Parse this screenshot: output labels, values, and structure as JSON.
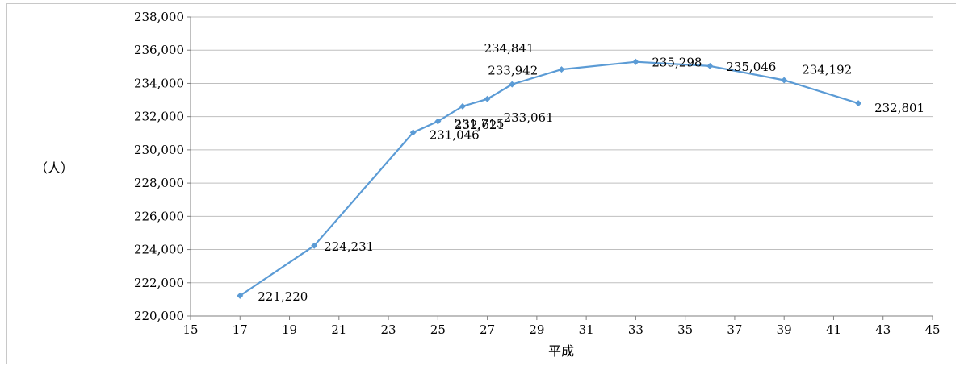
{
  "chart_data": {
    "type": "line",
    "title": "",
    "xlabel": "平成",
    "ylabel": "（人）",
    "xlim": [
      15,
      45
    ],
    "ylim": [
      220000,
      238000
    ],
    "x_ticks": [
      15,
      17,
      19,
      21,
      23,
      25,
      27,
      29,
      31,
      33,
      35,
      37,
      39,
      41,
      43,
      45
    ],
    "y_ticks": [
      220000,
      222000,
      224000,
      226000,
      228000,
      230000,
      232000,
      234000,
      236000,
      238000
    ],
    "grid": "horizontal",
    "legend": "none",
    "series": [
      {
        "color": "#5b9bd5",
        "points": [
          {
            "x": 17,
            "y": 221220,
            "label": "221,220"
          },
          {
            "x": 20,
            "y": 224231,
            "label": "224,231"
          },
          {
            "x": 24,
            "y": 231046,
            "label": "231,046"
          },
          {
            "x": 25,
            "y": 231715,
            "label": "231,715"
          },
          {
            "x": 26,
            "y": 232621,
            "label": "232,621"
          },
          {
            "x": 27,
            "y": 233061,
            "label": "233,061"
          },
          {
            "x": 28,
            "y": 233942,
            "label": "233,942"
          },
          {
            "x": 30,
            "y": 234841,
            "label": "234,841"
          },
          {
            "x": 33,
            "y": 235298,
            "label": "235,298"
          },
          {
            "x": 36,
            "y": 235046,
            "label": "235,046"
          },
          {
            "x": 39,
            "y": 234192,
            "label": "234,192"
          },
          {
            "x": 42,
            "y": 232801,
            "label": "232,801"
          }
        ]
      }
    ]
  }
}
